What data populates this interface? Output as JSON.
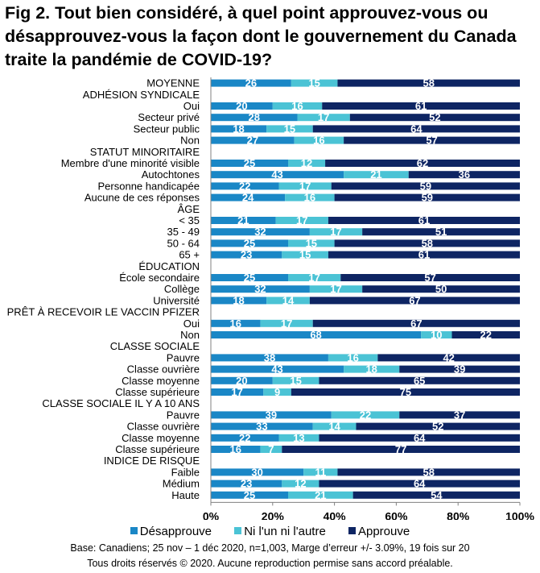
{
  "title": "Fig 2. Tout bien considéré, à quel point approuvez-vous ou désapprouvez-vous la façon dont le gouvernement du Canada traite la pandémie de COVID-19?",
  "colors": {
    "desapprouve": "#1a87c6",
    "ni": "#4bc3d5",
    "approuve": "#0e2563"
  },
  "legend": [
    "Désapprouve",
    "Ni l'un ni l'autre",
    "Approuve"
  ],
  "footnote": "Base: Canadiens; 25 nov – 1 déc 2020, n=1,003, Marge d’erreur +/- 3.09%, 19 fois sur 20",
  "copyright": "Tous droits réservés © 2020. Aucune reproduction permise sans accord préalable.",
  "chart_data": {
    "type": "bar",
    "orientation": "horizontal-stacked-100",
    "xlim": [
      0,
      100
    ],
    "xticks": [
      "0%",
      "20%",
      "40%",
      "60%",
      "80%",
      "100%"
    ],
    "series": [
      {
        "name": "Désapprouve",
        "key": "desapprouve"
      },
      {
        "name": "Ni l'un ni l'autre",
        "key": "ni"
      },
      {
        "name": "Approuve",
        "key": "approuve"
      }
    ],
    "rows": [
      {
        "label": "MOYENNE",
        "values": [
          26,
          15,
          58
        ]
      },
      {
        "label": "ADHÉSION SYNDICALE",
        "header": true
      },
      {
        "label": "Oui",
        "values": [
          20,
          16,
          61
        ]
      },
      {
        "label": "Secteur privé",
        "values": [
          28,
          17,
          52
        ]
      },
      {
        "label": "Secteur public",
        "values": [
          18,
          15,
          64
        ]
      },
      {
        "label": "Non",
        "values": [
          27,
          16,
          57
        ]
      },
      {
        "label": "STATUT MINORITAIRE",
        "header": true
      },
      {
        "label": "Membre d'une minorité visible",
        "values": [
          25,
          12,
          62
        ]
      },
      {
        "label": "Autochtones",
        "values": [
          43,
          21,
          36
        ]
      },
      {
        "label": "Personne handicapée",
        "values": [
          22,
          17,
          59
        ]
      },
      {
        "label": "Aucune de ces réponses",
        "values": [
          24,
          16,
          59
        ]
      },
      {
        "label": "ÂGE",
        "header": true
      },
      {
        "label": "< 35",
        "values": [
          21,
          17,
          61
        ]
      },
      {
        "label": "35 - 49",
        "values": [
          32,
          17,
          51
        ]
      },
      {
        "label": "50 - 64",
        "values": [
          25,
          15,
          58
        ]
      },
      {
        "label": "65 +",
        "values": [
          23,
          15,
          61
        ]
      },
      {
        "label": "ÉDUCATION",
        "header": true
      },
      {
        "label": "École secondaire",
        "values": [
          25,
          17,
          57
        ]
      },
      {
        "label": "Collège",
        "values": [
          32,
          17,
          50
        ]
      },
      {
        "label": "Université",
        "values": [
          18,
          14,
          67
        ]
      },
      {
        "label": "PRÊT À RECEVOIR LE VACCIN PFIZER",
        "header": true
      },
      {
        "label": "Oui",
        "values": [
          16,
          17,
          67
        ]
      },
      {
        "label": "Non",
        "values": [
          68,
          10,
          22
        ]
      },
      {
        "label": "CLASSE SOCIALE",
        "header": true
      },
      {
        "label": "Pauvre",
        "values": [
          38,
          16,
          42
        ]
      },
      {
        "label": "Classe ouvrière",
        "values": [
          43,
          18,
          39
        ]
      },
      {
        "label": "Classe moyenne",
        "values": [
          20,
          15,
          65
        ]
      },
      {
        "label": "Classe supérieure",
        "values": [
          17,
          9,
          75
        ]
      },
      {
        "label": "CLASSE SOCIALE IL Y A 10 ANS",
        "header": true
      },
      {
        "label": "Pauvre",
        "values": [
          39,
          22,
          37
        ]
      },
      {
        "label": "Classe ouvrière",
        "values": [
          33,
          14,
          52
        ]
      },
      {
        "label": "Classe moyenne",
        "values": [
          22,
          13,
          64
        ]
      },
      {
        "label": "Classe supérieure",
        "values": [
          16,
          7,
          77
        ]
      },
      {
        "label": "INDICE DE RISQUE",
        "header": true
      },
      {
        "label": "Faible",
        "values": [
          30,
          11,
          58
        ]
      },
      {
        "label": "Médium",
        "values": [
          23,
          12,
          64
        ]
      },
      {
        "label": "Haute",
        "values": [
          25,
          21,
          54
        ]
      }
    ]
  }
}
